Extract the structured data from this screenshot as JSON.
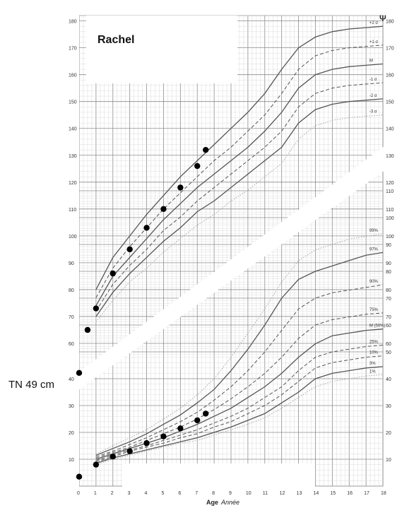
{
  "patient_name": "Rachel",
  "birth_annotation": "TN 49 cm",
  "chart_data": [
    {
      "type": "line",
      "title": "",
      "xlabel": "Age",
      "xlabel_fr": "Année",
      "ylabel": "",
      "xlim": [
        0,
        18
      ],
      "ylim": [
        55,
        182
      ],
      "x_ticks": [
        0,
        1,
        2,
        3,
        4,
        5,
        6,
        7,
        8,
        9,
        10,
        11,
        12,
        13,
        14,
        15,
        16,
        17,
        18
      ],
      "y_ticks": [
        60,
        70,
        80,
        90,
        100,
        110,
        120,
        130,
        140,
        150,
        160,
        170,
        180
      ],
      "grid": true,
      "series": [
        {
          "name": "+2 σ",
          "style": "solid",
          "x": [
            1,
            2,
            3,
            4,
            5,
            6,
            7,
            8,
            9,
            10,
            11,
            12,
            13,
            14,
            15,
            16,
            17,
            18
          ],
          "y": [
            80,
            92,
            100,
            108,
            115,
            122,
            128,
            134,
            140,
            146,
            153,
            162,
            170,
            174,
            176,
            177,
            177.5,
            178
          ]
        },
        {
          "name": "+1 σ",
          "style": "dashed",
          "x": [
            1,
            2,
            3,
            4,
            5,
            6,
            7,
            8,
            9,
            10,
            11,
            12,
            13,
            14,
            15,
            16,
            17,
            18
          ],
          "y": [
            77,
            88,
            96,
            103,
            110,
            116,
            122,
            128,
            133,
            139,
            145,
            153,
            162,
            167,
            169,
            170,
            170.5,
            171
          ]
        },
        {
          "name": "M",
          "style": "solid",
          "x": [
            1,
            2,
            3,
            4,
            5,
            6,
            7,
            8,
            9,
            10,
            11,
            12,
            13,
            14,
            15,
            16,
            17,
            18
          ],
          "y": [
            74,
            85,
            92,
            99,
            106,
            112,
            118,
            123,
            128,
            133,
            139,
            146,
            155,
            160,
            162,
            163,
            163.5,
            164
          ]
        },
        {
          "name": "-1 σ",
          "style": "dashed",
          "x": [
            1,
            2,
            3,
            4,
            5,
            6,
            7,
            8,
            9,
            10,
            11,
            12,
            13,
            14,
            15,
            16,
            17,
            18
          ],
          "y": [
            72,
            82,
            89,
            95,
            102,
            107,
            113,
            118,
            123,
            128,
            133,
            139,
            148,
            153,
            155,
            156,
            156.5,
            157
          ]
        },
        {
          "name": "-2 σ",
          "style": "solid",
          "x": [
            1,
            2,
            3,
            4,
            5,
            6,
            7,
            8,
            9,
            10,
            11,
            12,
            13,
            14,
            15,
            16,
            17,
            18
          ],
          "y": [
            70,
            79,
            86,
            92,
            98,
            103,
            109,
            113,
            118,
            123,
            128,
            133,
            142,
            147,
            149,
            150,
            150.5,
            151
          ]
        },
        {
          "name": "-3 σ",
          "style": "dotted",
          "x": [
            1,
            2,
            3,
            4,
            5,
            6,
            7,
            8,
            9,
            10,
            11,
            12,
            13,
            14,
            15,
            16,
            17,
            18
          ],
          "y": [
            68,
            76,
            83,
            88,
            94,
            99,
            104,
            108,
            113,
            117,
            122,
            127,
            136,
            141,
            143,
            144,
            144.5,
            145
          ]
        }
      ],
      "points": {
        "x": [
          0,
          0.5,
          1,
          2,
          3,
          4,
          5,
          6,
          7,
          7.5
        ],
        "y": [
          49,
          65,
          73,
          86,
          95,
          103,
          110,
          118,
          126,
          132
        ]
      }
    },
    {
      "type": "line",
      "title": "",
      "xlabel": "Age",
      "xlabel_fr": "Année",
      "ylabel": "",
      "xlim": [
        0,
        18
      ],
      "ylim": [
        0,
        110
      ],
      "x_ticks": [
        0,
        1,
        2,
        3,
        4,
        5,
        6,
        7,
        8,
        9,
        10,
        11,
        12,
        13,
        14,
        15,
        16,
        17,
        18
      ],
      "y_ticks": [
        10,
        20,
        30,
        40,
        50,
        60,
        70,
        80,
        90,
        100,
        110
      ],
      "grid": true,
      "series": [
        {
          "name": "99%",
          "style": "dotted",
          "x": [
            1,
            2,
            3,
            4,
            5,
            6,
            7,
            8,
            9,
            10,
            11,
            12,
            13,
            14,
            15,
            16,
            17,
            18
          ],
          "y": [
            12,
            15,
            18,
            21,
            25,
            29,
            34,
            40,
            48,
            57,
            66,
            76,
            84,
            88,
            90,
            92,
            93,
            94
          ]
        },
        {
          "name": "97%",
          "style": "solid",
          "x": [
            1,
            2,
            3,
            4,
            5,
            6,
            7,
            8,
            9,
            10,
            11,
            12,
            13,
            14,
            15,
            16,
            17,
            18
          ],
          "y": [
            11.5,
            14,
            16.5,
            19.5,
            23,
            26.5,
            31,
            36,
            43,
            51,
            60,
            70,
            77,
            80,
            82,
            84,
            86,
            87
          ]
        },
        {
          "name": "90%",
          "style": "dashed",
          "x": [
            1,
            2,
            3,
            4,
            5,
            6,
            7,
            8,
            9,
            10,
            11,
            12,
            13,
            14,
            15,
            16,
            17,
            18
          ],
          "y": [
            11,
            13,
            15.5,
            18,
            21,
            24,
            27.5,
            32,
            37,
            43,
            50,
            58,
            66,
            70,
            72,
            73,
            74,
            75
          ]
        },
        {
          "name": "75%",
          "style": "dashed",
          "x": [
            1,
            2,
            3,
            4,
            5,
            6,
            7,
            8,
            9,
            10,
            11,
            12,
            13,
            14,
            15,
            16,
            17,
            18
          ],
          "y": [
            10.5,
            12.5,
            14.5,
            17,
            19.5,
            22,
            25,
            28.5,
            32.5,
            37,
            42,
            48,
            55,
            60,
            62,
            63,
            64,
            64.5
          ]
        },
        {
          "name": "M (50%)",
          "style": "solid",
          "x": [
            1,
            2,
            3,
            4,
            5,
            6,
            7,
            8,
            9,
            10,
            11,
            12,
            13,
            14,
            15,
            16,
            17,
            18
          ],
          "y": [
            10,
            12,
            14,
            16,
            18,
            20.5,
            23,
            26,
            29,
            33,
            37,
            42,
            48,
            53,
            56,
            57,
            58,
            58.5
          ]
        },
        {
          "name": "25%",
          "style": "dashed",
          "x": [
            1,
            2,
            3,
            4,
            5,
            6,
            7,
            8,
            9,
            10,
            11,
            12,
            13,
            14,
            15,
            16,
            17,
            18
          ],
          "y": [
            9.5,
            11.5,
            13.5,
            15,
            17,
            19,
            21,
            23.5,
            26,
            29,
            33,
            37,
            43,
            48,
            50,
            51,
            52,
            52.5
          ]
        },
        {
          "name": "10%",
          "style": "dashed",
          "x": [
            1,
            2,
            3,
            4,
            5,
            6,
            7,
            8,
            9,
            10,
            11,
            12,
            13,
            14,
            15,
            16,
            17,
            18
          ],
          "y": [
            9,
            11,
            13,
            14.5,
            16,
            18,
            19.5,
            22,
            24,
            27,
            30,
            34,
            39,
            44,
            46,
            47,
            48,
            48.5
          ]
        },
        {
          "name": "3%",
          "style": "solid",
          "x": [
            1,
            2,
            3,
            4,
            5,
            6,
            7,
            8,
            9,
            10,
            11,
            12,
            13,
            14,
            15,
            16,
            17,
            18
          ],
          "y": [
            8.5,
            10.5,
            12,
            13.5,
            15,
            16.5,
            18,
            20,
            22,
            24.5,
            27,
            31,
            35,
            40,
            42,
            43,
            44,
            44.5
          ]
        },
        {
          "name": "1%",
          "style": "dotted",
          "x": [
            1,
            2,
            3,
            4,
            5,
            6,
            7,
            8,
            9,
            10,
            11,
            12,
            13,
            14,
            15,
            16,
            17,
            18
          ],
          "y": [
            8,
            10,
            11.5,
            13,
            14.5,
            16,
            17,
            19,
            21,
            23,
            25.5,
            29,
            33,
            37,
            39,
            40,
            41,
            41.5
          ]
        }
      ],
      "points": {
        "x": [
          0,
          1,
          2,
          3,
          4,
          5,
          6,
          7,
          7.5
        ],
        "y": [
          3.5,
          8,
          11,
          13,
          16,
          18.5,
          21.5,
          24.5,
          27
        ]
      }
    }
  ]
}
